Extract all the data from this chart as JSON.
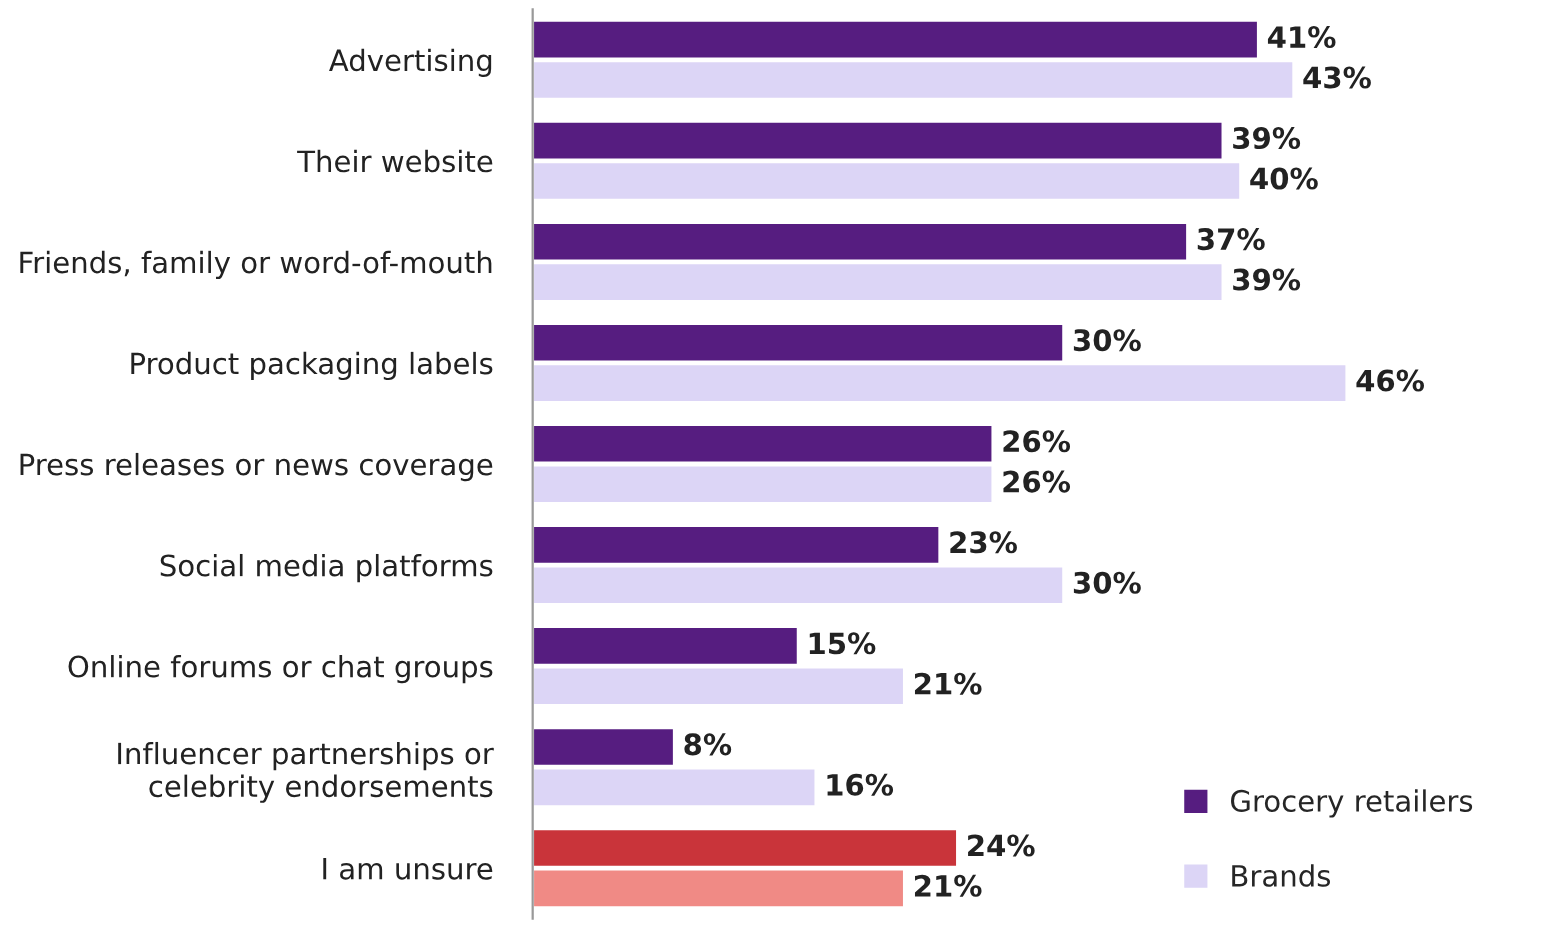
{
  "chart_data": {
    "type": "bar",
    "orientation": "horizontal",
    "categories": [
      "Advertising",
      "Their website",
      "Friends, family or word-of-mouth",
      "Product packaging labels",
      "Press releases or news coverage",
      "Social media platforms",
      "Online forums or chat groups",
      "Influencer partnerships or\ncelebrity endorsements",
      "I am unsure"
    ],
    "series": [
      {
        "name": "Grocery retailers",
        "color": "#561d80",
        "colors": [
          "#561d80",
          "#561d80",
          "#561d80",
          "#561d80",
          "#561d80",
          "#561d80",
          "#561d80",
          "#561d80",
          "#c9343a"
        ],
        "values": [
          41,
          39,
          37,
          30,
          26,
          23,
          15,
          8,
          24
        ],
        "value_labels": [
          "41%",
          "39%",
          "37%",
          "30%",
          "26%",
          "23%",
          "15%",
          "8%",
          "24%"
        ]
      },
      {
        "name": "Brands",
        "color": "#dcd5f6",
        "colors": [
          "#dcd5f6",
          "#dcd5f6",
          "#dcd5f6",
          "#dcd5f6",
          "#dcd5f6",
          "#dcd5f6",
          "#dcd5f6",
          "#dcd5f6",
          "#f08a85"
        ],
        "values": [
          43,
          40,
          39,
          46,
          26,
          30,
          21,
          16,
          21
        ],
        "value_labels": [
          "43%",
          "40%",
          "39%",
          "46%",
          "26%",
          "30%",
          "21%",
          "16%",
          "21%"
        ]
      }
    ],
    "legend": "bottom right",
    "grid": false
  }
}
